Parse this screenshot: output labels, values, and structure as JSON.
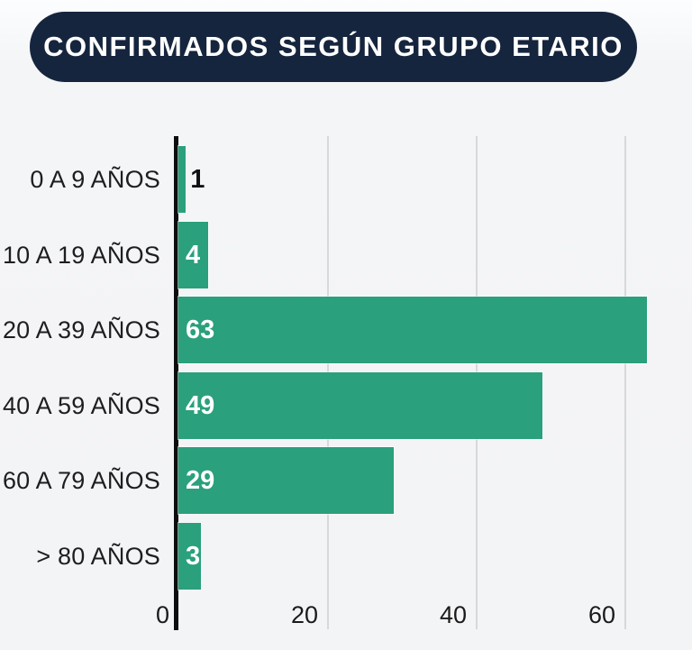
{
  "title": "CONFIRMADOS SEGÚN GRUPO ETARIO",
  "chart_data": {
    "type": "bar",
    "orientation": "horizontal",
    "title": "CONFIRMADOS SEGÚN GRUPO ETARIO",
    "categories": [
      "0 A 9 AÑOS",
      "10 A 19 AÑOS",
      "20 A 39 AÑOS",
      "40 A 59 AÑOS",
      "60 A 79 AÑOS",
      "> 80 AÑOS"
    ],
    "values": [
      1,
      4,
      63,
      49,
      29,
      3
    ],
    "x_ticks": [
      0,
      20,
      40,
      60
    ],
    "xlim": [
      0,
      69
    ],
    "grid": true,
    "legend": "none",
    "xlabel": "",
    "ylabel": ""
  },
  "colors": {
    "background": "#f4f5f7",
    "title_pill": "#16253e",
    "title_text": "#ffffff",
    "bar": "#2aa07c",
    "axis_line": "#0d0d0d",
    "gridline": "#d7d8da",
    "category_text": "#1e1e1e",
    "value_inside": "#ffffff",
    "value_outside": "#111111",
    "tick_text": "#1b1b1b"
  }
}
